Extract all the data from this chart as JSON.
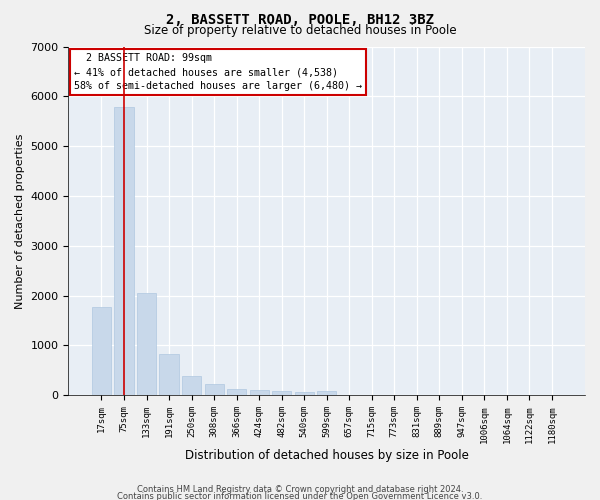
{
  "title": "2, BASSETT ROAD, POOLE, BH12 3BZ",
  "subtitle": "Size of property relative to detached houses in Poole",
  "xlabel": "Distribution of detached houses by size in Poole",
  "ylabel": "Number of detached properties",
  "bar_color": "#c8d8ea",
  "bar_edge_color": "#b0c8e0",
  "axes_bg_color": "#e8eef5",
  "fig_bg_color": "#f0f0f0",
  "grid_color": "#ffffff",
  "annotation_box_color": "#ffffff",
  "annotation_box_edge": "#cc0000",
  "marker_line_color": "#cc0000",
  "categories": [
    "17sqm",
    "75sqm",
    "133sqm",
    "191sqm",
    "250sqm",
    "308sqm",
    "366sqm",
    "424sqm",
    "482sqm",
    "540sqm",
    "599sqm",
    "657sqm",
    "715sqm",
    "773sqm",
    "831sqm",
    "889sqm",
    "947sqm",
    "1006sqm",
    "1064sqm",
    "1122sqm",
    "1180sqm"
  ],
  "values": [
    1780,
    5780,
    2060,
    820,
    385,
    220,
    115,
    110,
    80,
    65,
    80,
    0,
    0,
    0,
    0,
    0,
    0,
    0,
    0,
    0,
    0
  ],
  "property_label": "2 BASSETT ROAD: 99sqm",
  "pct_smaller": 41,
  "n_smaller": 4538,
  "pct_larger_semi": 58,
  "n_larger_semi": 6480,
  "marker_bar_index": 1,
  "ylim_max": 7000,
  "yticks": [
    0,
    1000,
    2000,
    3000,
    4000,
    5000,
    6000,
    7000
  ],
  "footnote1": "Contains HM Land Registry data © Crown copyright and database right 2024.",
  "footnote2": "Contains public sector information licensed under the Open Government Licence v3.0."
}
